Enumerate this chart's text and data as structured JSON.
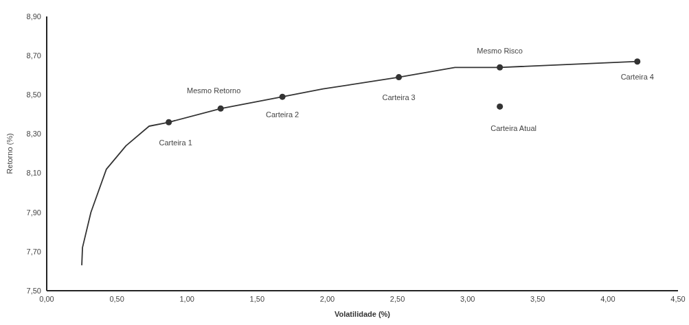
{
  "chart_data": {
    "type": "line",
    "xlabel": "Volatilidade (%)",
    "ylabel": "Retorno (%)",
    "xlim": [
      0,
      4.5
    ],
    "ylim": [
      7.5,
      8.9
    ],
    "xticks": [
      {
        "value": 0,
        "label": "0,00"
      },
      {
        "value": 0.5,
        "label": "0,50"
      },
      {
        "value": 1,
        "label": "1,00"
      },
      {
        "value": 1.5,
        "label": "1,50"
      },
      {
        "value": 2,
        "label": "2,00"
      },
      {
        "value": 2.5,
        "label": "2,50"
      },
      {
        "value": 3,
        "label": "3,00"
      },
      {
        "value": 3.5,
        "label": "3,50"
      },
      {
        "value": 4,
        "label": "4,00"
      },
      {
        "value": 4.5,
        "label": "4,50"
      }
    ],
    "yticks": [
      {
        "value": 7.5,
        "label": "7,50"
      },
      {
        "value": 7.7,
        "label": "7,70"
      },
      {
        "value": 7.9,
        "label": "7,90"
      },
      {
        "value": 8.1,
        "label": "8,10"
      },
      {
        "value": 8.3,
        "label": "8,30"
      },
      {
        "value": 8.5,
        "label": "8,50"
      },
      {
        "value": 8.7,
        "label": "8,70"
      },
      {
        "value": 8.9,
        "label": "8,90"
      }
    ],
    "grid": false,
    "series": [
      {
        "color": "#333333",
        "marker": "none",
        "x": [
          0.25,
          0.255,
          0.315,
          0.425,
          0.565,
          0.73,
          0.87,
          1.24,
          1.68,
          1.97,
          2.51,
          2.91,
          3.23,
          4.21
        ],
        "values": [
          7.63,
          7.72,
          7.9,
          8.12,
          8.24,
          8.34,
          8.36,
          8.43,
          8.49,
          8.53,
          8.59,
          8.64,
          8.64,
          8.67
        ]
      },
      {
        "type": "scatter",
        "color": "#333333",
        "marker": "circle",
        "x": [
          0.87,
          1.24,
          1.68,
          2.51,
          3.23,
          4.21,
          3.23
        ],
        "values": [
          8.36,
          8.43,
          8.49,
          8.59,
          8.64,
          8.67,
          8.44
        ]
      }
    ],
    "annotations": [
      {
        "text": "Carteira 1",
        "x": 0.87,
        "y": 8.36
      },
      {
        "text": "Mesmo Retorno",
        "x": 1.24,
        "y": 8.43
      },
      {
        "text": "Carteira 2",
        "x": 1.68,
        "y": 8.49
      },
      {
        "text": "Carteira 3",
        "x": 2.51,
        "y": 8.59
      },
      {
        "text": "Mesmo Risco",
        "x": 3.23,
        "y": 8.64
      },
      {
        "text": "Carteira 4",
        "x": 4.21,
        "y": 8.67
      },
      {
        "text": "Carteira Atual",
        "x": 3.23,
        "y": 8.44
      }
    ]
  }
}
